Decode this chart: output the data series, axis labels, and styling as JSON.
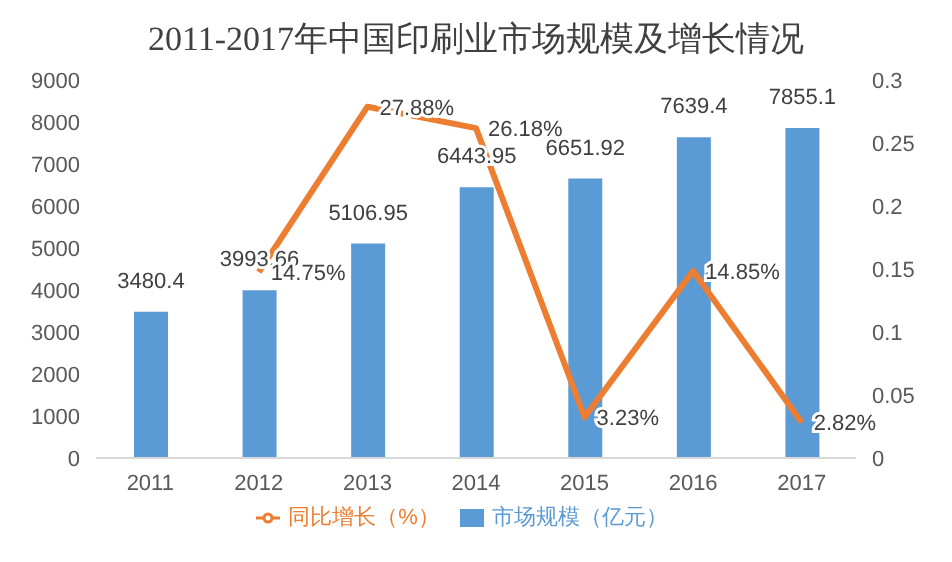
{
  "chart_data": {
    "type": "bar",
    "title": "2011-2017年中国印刷业市场规模及增长情况",
    "categories": [
      "2011",
      "2012",
      "2013",
      "2014",
      "2015",
      "2016",
      "2017"
    ],
    "series": [
      {
        "name": "市场规模（亿元）",
        "color": "#5b9bd5",
        "values": [
          3480.4,
          3993.66,
          5106.95,
          6443.95,
          6651.92,
          7639.4,
          7855.1
        ],
        "value_labels": [
          "3480.4",
          "3993.66",
          "5106.95",
          "6443.95",
          "6651.92",
          "7639.4",
          "7855.1"
        ]
      },
      {
        "name": "同比增长（%）",
        "type": "line",
        "axis": "y2",
        "color": "#ed7d31",
        "values": [
          null,
          0.1475,
          0.2788,
          0.2618,
          0.0323,
          0.1485,
          0.0282
        ],
        "value_labels": [
          null,
          "14.75%",
          "27.88%",
          "26.18%",
          "3.23%",
          "14.85%",
          "2.82%"
        ]
      }
    ],
    "ylim": [
      0,
      9000
    ],
    "yticks": [
      0,
      1000,
      2000,
      3000,
      4000,
      5000,
      6000,
      7000,
      8000,
      9000
    ],
    "y2lim": [
      0,
      0.3
    ],
    "y2ticks": [
      0,
      0.05,
      0.1,
      0.15,
      0.2,
      0.25,
      0.3
    ],
    "grid": false,
    "legend": "bottom",
    "marker": "none",
    "line_style": "solid"
  }
}
